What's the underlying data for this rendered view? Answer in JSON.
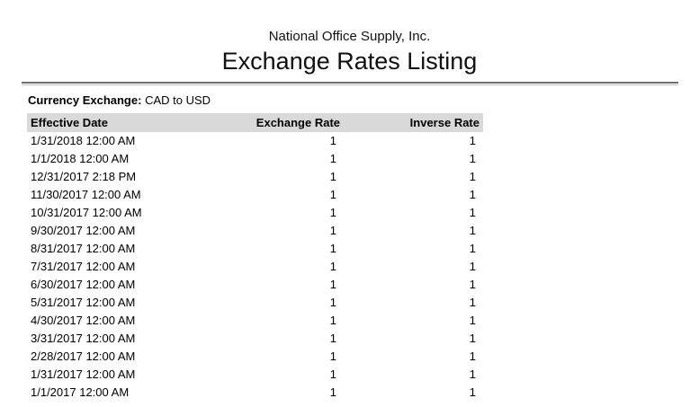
{
  "report": {
    "company_name": "National Office Supply, Inc.",
    "title": "Exchange Rates Listing",
    "currency_exchange_label": "Currency Exchange:",
    "currency_exchange_value": "CAD to USD"
  },
  "table": {
    "columns": [
      "Effective Date",
      "Exchange Rate",
      "Inverse Rate"
    ],
    "rows": [
      {
        "effective_date": "1/31/2018 12:00 AM",
        "exchange_rate": "1",
        "inverse_rate": "1"
      },
      {
        "effective_date": "1/1/2018 12:00 AM",
        "exchange_rate": "1",
        "inverse_rate": "1"
      },
      {
        "effective_date": "12/31/2017 2:18 PM",
        "exchange_rate": "1",
        "inverse_rate": "1"
      },
      {
        "effective_date": "11/30/2017 12:00 AM",
        "exchange_rate": "1",
        "inverse_rate": "1"
      },
      {
        "effective_date": "10/31/2017 12:00 AM",
        "exchange_rate": "1",
        "inverse_rate": "1"
      },
      {
        "effective_date": "9/30/2017 12:00 AM",
        "exchange_rate": "1",
        "inverse_rate": "1"
      },
      {
        "effective_date": "8/31/2017 12:00 AM",
        "exchange_rate": "1",
        "inverse_rate": "1"
      },
      {
        "effective_date": "7/31/2017 12:00 AM",
        "exchange_rate": "1",
        "inverse_rate": "1"
      },
      {
        "effective_date": "6/30/2017 12:00 AM",
        "exchange_rate": "1",
        "inverse_rate": "1"
      },
      {
        "effective_date": "5/31/2017 12:00 AM",
        "exchange_rate": "1",
        "inverse_rate": "1"
      },
      {
        "effective_date": "4/30/2017 12:00 AM",
        "exchange_rate": "1",
        "inverse_rate": "1"
      },
      {
        "effective_date": "3/31/2017 12:00 AM",
        "exchange_rate": "1",
        "inverse_rate": "1"
      },
      {
        "effective_date": "2/28/2017 12:00 AM",
        "exchange_rate": "1",
        "inverse_rate": "1"
      },
      {
        "effective_date": "1/31/2017 12:00 AM",
        "exchange_rate": "1",
        "inverse_rate": "1"
      },
      {
        "effective_date": "1/1/2017 12:00 AM",
        "exchange_rate": "1",
        "inverse_rate": "1"
      }
    ]
  },
  "colors": {
    "table_header_bg": "#d9d9d9",
    "text": "#000000",
    "rule_dark": "#6e6e6e",
    "rule_light": "#c0c0c0"
  }
}
